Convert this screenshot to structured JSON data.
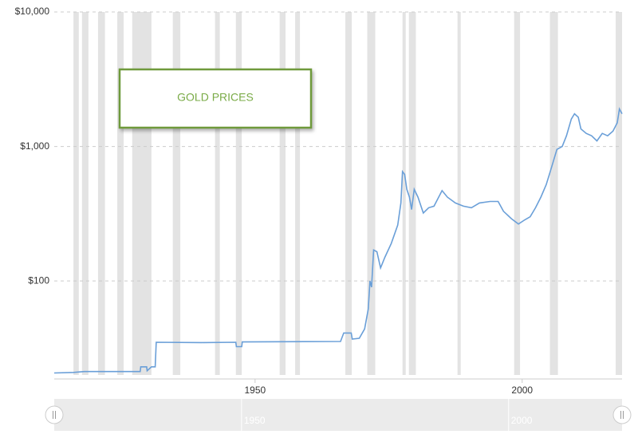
{
  "chart_data": {
    "type": "line",
    "title": "GOLD PRICES",
    "log_y": true,
    "grid": true,
    "xlim": [
      1912.4,
      2018.7
    ],
    "xticks": [
      1950,
      2000
    ],
    "ylim": [
      20,
      10000
    ],
    "yticks": [
      {
        "value": 100,
        "label": "$100"
      },
      {
        "value": 1000,
        "label": "$1,000"
      },
      {
        "value": 10000,
        "label": "$10,000"
      }
    ],
    "bands_color": "#e3e3e3",
    "bands": [
      [
        1916.0,
        1917.0
      ],
      [
        1917.6,
        1918.8
      ],
      [
        1920.6,
        1921.9
      ],
      [
        1924.2,
        1925.4
      ],
      [
        1927.0,
        1930.6
      ],
      [
        1934.6,
        1936.0
      ],
      [
        1942.5,
        1943.4
      ],
      [
        1946.4,
        1947.5
      ],
      [
        1954.6,
        1955.7
      ],
      [
        1957.5,
        1958.4
      ],
      [
        1966.9,
        1968.1
      ],
      [
        1971.0,
        1972.5
      ],
      [
        1977.6,
        1978.2
      ],
      [
        1978.8,
        1980.1
      ],
      [
        1987.9,
        1988.5
      ],
      [
        1998.5,
        1999.6
      ],
      [
        2005.2,
        2006.7
      ],
      [
        2017.5,
        2018.7
      ]
    ],
    "series": [
      {
        "color": "#6a9fd8",
        "x": [
          1912.4,
          1916,
          1918,
          1925,
          1928.5,
          1928.6,
          1929.7,
          1929.8,
          1930.6,
          1931.3,
          1931.5,
          1940,
          1946.4,
          1946.5,
          1947.5,
          1947.6,
          1966,
          1966.6,
          1968,
          1968.2,
          1969.5,
          1970.5,
          1971.2,
          1971.5,
          1971.8,
          1972.2,
          1972.8,
          1973.5,
          1974.3,
          1975.5,
          1976.7,
          1977.3,
          1977.6,
          1978,
          1978.4,
          1978.9,
          1979.3,
          1979.8,
          1980.5,
          1981.5,
          1982.5,
          1983.5,
          1985,
          1986,
          1987.5,
          1989,
          1990.5,
          1992,
          1994,
          1995.5,
          1996.5,
          1998,
          1999.3,
          2000.5,
          2001.5,
          2002.5,
          2003.5,
          2004.5,
          2005.5,
          2006.5,
          2007.5,
          2008.3,
          2009.2,
          2009.8,
          2010.5,
          2011,
          2012,
          2013,
          2014,
          2015,
          2016,
          2017,
          2017.8,
          2018.2,
          2018.7
        ],
        "values": [
          20.7,
          20.9,
          21.2,
          21.2,
          21.2,
          23,
          23,
          21.5,
          23,
          23,
          35,
          34.8,
          35,
          32.5,
          32.5,
          35.2,
          35.5,
          41,
          41,
          37,
          37.5,
          44,
          62,
          100,
          90,
          170,
          165,
          125,
          150,
          190,
          260,
          380,
          650,
          620,
          480,
          420,
          340,
          480,
          420,
          320,
          350,
          360,
          470,
          420,
          380,
          360,
          350,
          380,
          390,
          390,
          330,
          290,
          265,
          285,
          300,
          350,
          420,
          520,
          700,
          950,
          1000,
          1200,
          1600,
          1750,
          1650,
          1350,
          1250,
          1200,
          1100,
          1250,
          1200,
          1300,
          1500,
          1900,
          1750
        ]
      }
    ]
  }
}
